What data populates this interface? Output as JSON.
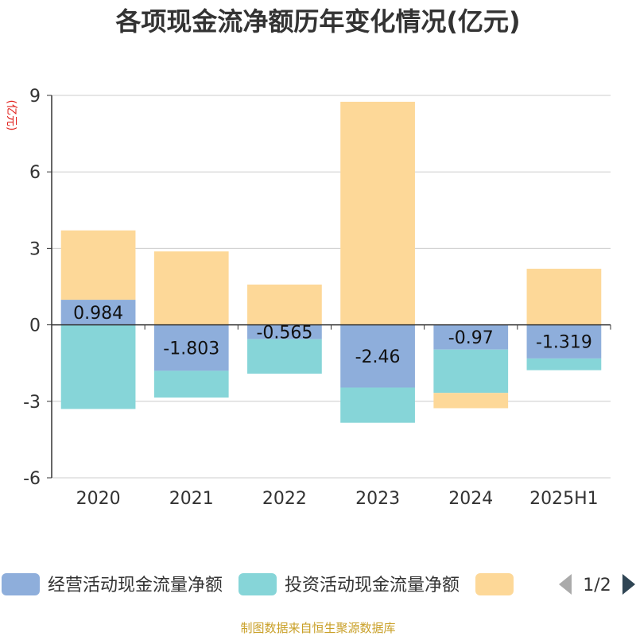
{
  "chart_data": {
    "type": "bar",
    "stacked": true,
    "title": "各项现金流净额历年变化情况(亿元)",
    "ylabel": "(亿元)",
    "categories": [
      "2020",
      "2021",
      "2022",
      "2023",
      "2024",
      "2025H1"
    ],
    "ylim": [
      -6,
      9
    ],
    "yticks": [
      -6,
      -3,
      0,
      3,
      6,
      9
    ],
    "grid": true,
    "series": [
      {
        "name": "经营活动现金流量净额",
        "color": "#8eaedb",
        "values": [
          0.984,
          -1.803,
          -0.565,
          -2.46,
          -0.97,
          -1.319
        ],
        "labels": [
          "0.984",
          "-1.803",
          "-0.565",
          "-2.46",
          "-0.97",
          "-1.319"
        ]
      },
      {
        "name": "投资活动现金流量净额",
        "color": "#86d5d8",
        "values": [
          -3.3,
          -1.05,
          -1.35,
          -1.38,
          -1.7,
          -0.46
        ]
      },
      {
        "name": "",
        "color": "#fdd898",
        "values": [
          2.72,
          2.88,
          1.58,
          8.75,
          -0.6,
          2.2
        ]
      }
    ],
    "legend_position": "bottom",
    "legend_page": "1/2",
    "source": "制图数据来自恒生聚源数据库"
  }
}
